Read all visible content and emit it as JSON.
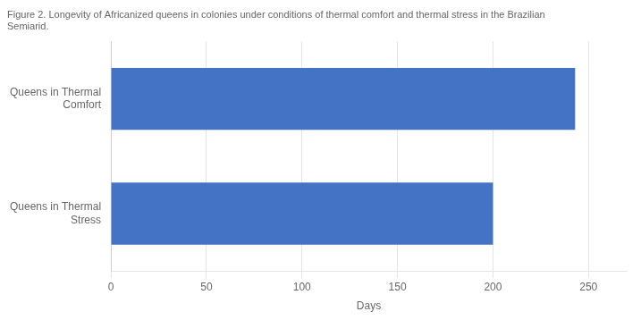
{
  "chart_data": {
    "type": "bar",
    "orientation": "horizontal",
    "title": "Figure 2. Longevity of Africanized queens in colonies under conditions of thermal comfort and thermal stress in the Brazilian\nSemiarid.",
    "xlabel": "Days",
    "categories": [
      "Queens in Thermal\nComfort",
      "Queens in Thermal\nStress"
    ],
    "values": [
      243,
      200
    ],
    "color": "#4472C4",
    "xlim": [
      0,
      270
    ],
    "xticks": [
      0,
      50,
      100,
      150,
      200,
      250
    ],
    "grid": true
  }
}
